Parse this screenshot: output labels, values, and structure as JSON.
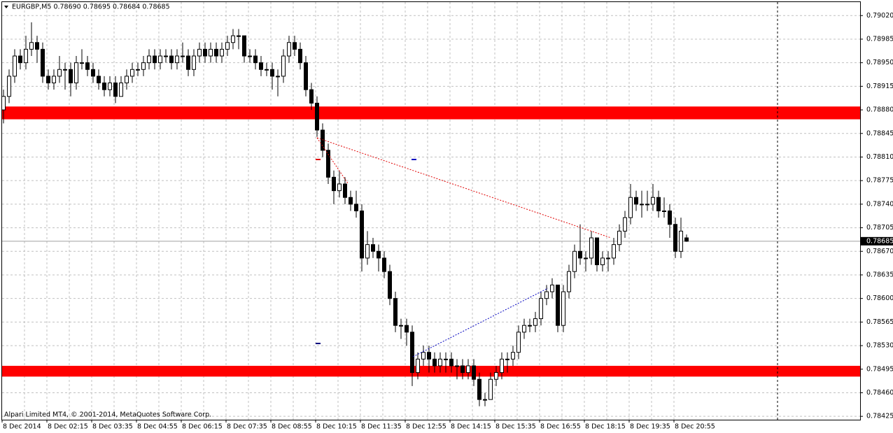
{
  "chart_data": {
    "type": "candlestick",
    "title": "EURGBP,M5  0.78690 0.78695 0.78684 0.78685",
    "footer": "Alpari Limited MT4, © 2001-2014, MetaQuotes Software Corp.",
    "bull_color": "#ffffff",
    "bear_color": "#000000",
    "grid": true,
    "ylim": [
      0.7842,
      0.7904
    ],
    "yticks": [
      {
        "value": 0.7902,
        "label": "0.79020"
      },
      0.78985,
      {
        "value": 0.7895,
        "label": "0.78950"
      },
      0.78915,
      {
        "value": 0.7888,
        "label": "0.78880"
      },
      0.78845,
      {
        "value": 0.7881,
        "label": "0.78810"
      },
      0.78775,
      {
        "value": 0.7874,
        "label": "0.78740"
      },
      0.78705,
      {
        "value": 0.7867,
        "label": "0.78670"
      },
      0.78635,
      {
        "value": 0.786,
        "label": "0.78600"
      },
      0.78565,
      {
        "value": 0.7853,
        "label": "0.78530"
      },
      0.78495,
      {
        "value": 0.7846,
        "label": "0.78460"
      },
      0.78425
    ],
    "last_price": 0.78685,
    "zones": [
      {
        "color": "#ff0000",
        "range": [
          0.78885,
          0.78866
        ]
      },
      {
        "color": "#ff0000",
        "range": [
          0.785,
          0.78484
        ]
      }
    ],
    "categories": [
      "8 Dec 2014",
      null,
      null,
      null,
      null,
      null,
      null,
      null,
      "8 Dec 02:15",
      null,
      null,
      null,
      null,
      null,
      null,
      null,
      "8 Dec 03:35",
      null,
      null,
      null,
      null,
      null,
      null,
      null,
      "8 Dec 04:55",
      null,
      null,
      null,
      null,
      null,
      null,
      null,
      "8 Dec 06:15",
      null,
      null,
      null,
      null,
      null,
      null,
      null,
      "8 Dec 07:35",
      null,
      null,
      null,
      null,
      null,
      null,
      null,
      "8 Dec 08:55",
      null,
      null,
      null,
      null,
      null,
      null,
      null,
      "8 Dec 10:15",
      null,
      null,
      null,
      null,
      null,
      null,
      null,
      "8 Dec 11:35",
      null,
      null,
      null,
      null,
      null,
      null,
      null,
      "8 Dec 12:55",
      null,
      null,
      null,
      null,
      null,
      null,
      null,
      "8 Dec 14:15",
      null,
      null,
      null,
      null,
      null,
      null,
      null,
      "8 Dec 15:35",
      null,
      null,
      null,
      null,
      null,
      null,
      null,
      "8 Dec 16:55",
      null,
      null,
      null,
      null,
      null,
      null,
      null,
      "8 Dec 18:15",
      null,
      null,
      null,
      null,
      null,
      null,
      null,
      "8 Dec 19:35",
      null,
      null,
      null,
      null,
      null,
      null,
      null,
      "8 Dec 20:55",
      null,
      null
    ],
    "candles": [
      [
        0.7888,
        0.7891,
        0.7886,
        0.789
      ],
      [
        0.789,
        0.7894,
        0.7889,
        0.7893
      ],
      [
        0.7893,
        0.7897,
        0.7892,
        0.7896
      ],
      [
        0.7896,
        0.7897,
        0.7894,
        0.7895
      ],
      [
        0.7895,
        0.7899,
        0.7894,
        0.7897
      ],
      [
        0.7897,
        0.7901,
        0.7896,
        0.7898
      ],
      [
        0.7898,
        0.7899,
        0.7895,
        0.7897
      ],
      [
        0.7897,
        0.7898,
        0.7892,
        0.7893
      ],
      [
        0.7893,
        0.7894,
        0.7891,
        0.7892
      ],
      [
        0.7892,
        0.7894,
        0.7891,
        0.7893
      ],
      [
        0.7893,
        0.7896,
        0.7892,
        0.7894
      ],
      [
        0.7894,
        0.7895,
        0.7891,
        0.7894
      ],
      [
        0.7894,
        0.7895,
        0.789,
        0.7892
      ],
      [
        0.7892,
        0.7896,
        0.7891,
        0.7895
      ],
      [
        0.7895,
        0.7897,
        0.7894,
        0.7895
      ],
      [
        0.7895,
        0.7896,
        0.7893,
        0.7894
      ],
      [
        0.7894,
        0.7895,
        0.7892,
        0.7893
      ],
      [
        0.7893,
        0.7894,
        0.7891,
        0.7892
      ],
      [
        0.7892,
        0.7893,
        0.789,
        0.7891
      ],
      [
        0.7891,
        0.7893,
        0.789,
        0.7892
      ],
      [
        0.7892,
        0.7893,
        0.7889,
        0.789
      ],
      [
        0.789,
        0.7893,
        0.789,
        0.7892
      ],
      [
        0.7892,
        0.7894,
        0.7891,
        0.7893
      ],
      [
        0.7893,
        0.7895,
        0.7892,
        0.7894
      ],
      [
        0.7894,
        0.7895,
        0.7893,
        0.7894
      ],
      [
        0.7894,
        0.7896,
        0.7893,
        0.7895
      ],
      [
        0.7895,
        0.7897,
        0.7894,
        0.7896
      ],
      [
        0.7896,
        0.7897,
        0.7894,
        0.7895
      ],
      [
        0.7895,
        0.7897,
        0.7894,
        0.7896
      ],
      [
        0.7896,
        0.7897,
        0.7895,
        0.7896
      ],
      [
        0.7896,
        0.7897,
        0.7894,
        0.7895
      ],
      [
        0.7895,
        0.7897,
        0.7894,
        0.7896
      ],
      [
        0.7896,
        0.7898,
        0.7895,
        0.7896
      ],
      [
        0.7896,
        0.7897,
        0.7893,
        0.7894
      ],
      [
        0.7894,
        0.7897,
        0.7893,
        0.7896
      ],
      [
        0.7896,
        0.7898,
        0.7895,
        0.7897
      ],
      [
        0.7897,
        0.7898,
        0.7895,
        0.7896
      ],
      [
        0.7896,
        0.7898,
        0.7895,
        0.7897
      ],
      [
        0.7897,
        0.7898,
        0.7895,
        0.7896
      ],
      [
        0.7896,
        0.7898,
        0.7895,
        0.7897
      ],
      [
        0.7897,
        0.7899,
        0.7896,
        0.7898
      ],
      [
        0.7898,
        0.79,
        0.7897,
        0.7899
      ],
      [
        0.7899,
        0.79,
        0.7897,
        0.7899
      ],
      [
        0.7899,
        0.7899,
        0.7895,
        0.7896
      ],
      [
        0.7896,
        0.7897,
        0.7895,
        0.7896
      ],
      [
        0.7896,
        0.7897,
        0.7894,
        0.7895
      ],
      [
        0.7895,
        0.7896,
        0.7893,
        0.7894
      ],
      [
        0.7894,
        0.7895,
        0.7893,
        0.7894
      ],
      [
        0.7894,
        0.7895,
        0.7891,
        0.7893
      ],
      [
        0.7893,
        0.7894,
        0.789,
        0.7893
      ],
      [
        0.7893,
        0.7897,
        0.7892,
        0.7896
      ],
      [
        0.7896,
        0.7899,
        0.7895,
        0.7898
      ],
      [
        0.7898,
        0.7899,
        0.7896,
        0.7897
      ],
      [
        0.7897,
        0.7898,
        0.7894,
        0.7895
      ],
      [
        0.7895,
        0.7896,
        0.789,
        0.7891
      ],
      [
        0.7891,
        0.7892,
        0.7888,
        0.7889
      ],
      [
        0.7889,
        0.789,
        0.7884,
        0.7885
      ],
      [
        0.7885,
        0.7886,
        0.7881,
        0.7882
      ],
      [
        0.7882,
        0.7883,
        0.7877,
        0.7878
      ],
      [
        0.7878,
        0.7879,
        0.7874,
        0.7876
      ],
      [
        0.7876,
        0.7879,
        0.7875,
        0.7877
      ],
      [
        0.7877,
        0.7878,
        0.7874,
        0.7875
      ],
      [
        0.7875,
        0.7876,
        0.7873,
        0.7874
      ],
      [
        0.7874,
        0.7876,
        0.7872,
        0.7873
      ],
      [
        0.7873,
        0.7874,
        0.7864,
        0.7866
      ],
      [
        0.7866,
        0.787,
        0.7865,
        0.7868
      ],
      [
        0.7868,
        0.7869,
        0.7866,
        0.7867
      ],
      [
        0.7867,
        0.7868,
        0.7864,
        0.7866
      ],
      [
        0.7866,
        0.7867,
        0.7863,
        0.7864
      ],
      [
        0.7864,
        0.7865,
        0.7859,
        0.786
      ],
      [
        0.786,
        0.7861,
        0.7855,
        0.7856
      ],
      [
        0.7856,
        0.7857,
        0.7854,
        0.7856
      ],
      [
        0.7856,
        0.7857,
        0.7853,
        0.7855
      ],
      [
        0.7855,
        0.7856,
        0.7847,
        0.7849
      ],
      [
        0.7849,
        0.7852,
        0.7848,
        0.7851
      ],
      [
        0.7851,
        0.7853,
        0.785,
        0.7852
      ],
      [
        0.7852,
        0.7853,
        0.7849,
        0.7851
      ],
      [
        0.7851,
        0.7852,
        0.7849,
        0.785
      ],
      [
        0.785,
        0.7852,
        0.7849,
        0.7851
      ],
      [
        0.7851,
        0.7852,
        0.7849,
        0.7851
      ],
      [
        0.7851,
        0.7852,
        0.7849,
        0.785
      ],
      [
        0.785,
        0.7851,
        0.7848,
        0.785
      ],
      [
        0.785,
        0.7851,
        0.7848,
        0.7849
      ],
      [
        0.7849,
        0.7851,
        0.7848,
        0.785
      ],
      [
        0.785,
        0.7851,
        0.7847,
        0.7848
      ],
      [
        0.7848,
        0.7849,
        0.7844,
        0.7845
      ],
      [
        0.7845,
        0.7846,
        0.7844,
        0.7845
      ],
      [
        0.7845,
        0.7849,
        0.7845,
        0.7848
      ],
      [
        0.7848,
        0.785,
        0.7847,
        0.7849
      ],
      [
        0.7849,
        0.7852,
        0.7848,
        0.7851
      ],
      [
        0.7851,
        0.7852,
        0.7849,
        0.7851
      ],
      [
        0.7851,
        0.7853,
        0.785,
        0.7852
      ],
      [
        0.7852,
        0.7856,
        0.7851,
        0.7855
      ],
      [
        0.7855,
        0.7857,
        0.7854,
        0.7856
      ],
      [
        0.7856,
        0.7857,
        0.7855,
        0.7856
      ],
      [
        0.7856,
        0.7858,
        0.7855,
        0.7857
      ],
      [
        0.7857,
        0.7861,
        0.7856,
        0.786
      ],
      [
        0.786,
        0.7862,
        0.7859,
        0.7861
      ],
      [
        0.7861,
        0.7863,
        0.786,
        0.7862
      ],
      [
        0.7862,
        0.7862,
        0.7855,
        0.7856
      ],
      [
        0.7856,
        0.7862,
        0.7855,
        0.7861
      ],
      [
        0.7861,
        0.7865,
        0.786,
        0.7864
      ],
      [
        0.7864,
        0.7868,
        0.7863,
        0.7867
      ],
      [
        0.7867,
        0.7871,
        0.7865,
        0.7866
      ],
      [
        0.7866,
        0.7867,
        0.7864,
        0.7866
      ],
      [
        0.7866,
        0.787,
        0.7865,
        0.7869
      ],
      [
        0.7869,
        0.7869,
        0.7864,
        0.7865
      ],
      [
        0.7865,
        0.7867,
        0.7864,
        0.7866
      ],
      [
        0.7866,
        0.7867,
        0.7864,
        0.7866
      ],
      [
        0.7866,
        0.7869,
        0.7865,
        0.7868
      ],
      [
        0.7868,
        0.7871,
        0.7867,
        0.787
      ],
      [
        0.787,
        0.7873,
        0.7869,
        0.7872
      ],
      [
        0.7872,
        0.7877,
        0.7871,
        0.7875
      ],
      [
        0.7875,
        0.7876,
        0.7873,
        0.7874
      ],
      [
        0.7874,
        0.7876,
        0.7872,
        0.7874
      ],
      [
        0.7874,
        0.7876,
        0.7873,
        0.7874
      ],
      [
        0.7874,
        0.7877,
        0.7873,
        0.7875
      ],
      [
        0.7875,
        0.7876,
        0.7872,
        0.7873
      ],
      [
        0.7873,
        0.7875,
        0.7872,
        0.7873
      ],
      [
        0.7873,
        0.7874,
        0.7869,
        0.7871
      ],
      [
        0.7871,
        0.7872,
        0.7866,
        0.7867
      ],
      [
        0.7867,
        0.7872,
        0.7866,
        0.787
      ],
      [
        0.7869,
        0.78695,
        0.78684,
        0.78685
      ]
    ]
  }
}
